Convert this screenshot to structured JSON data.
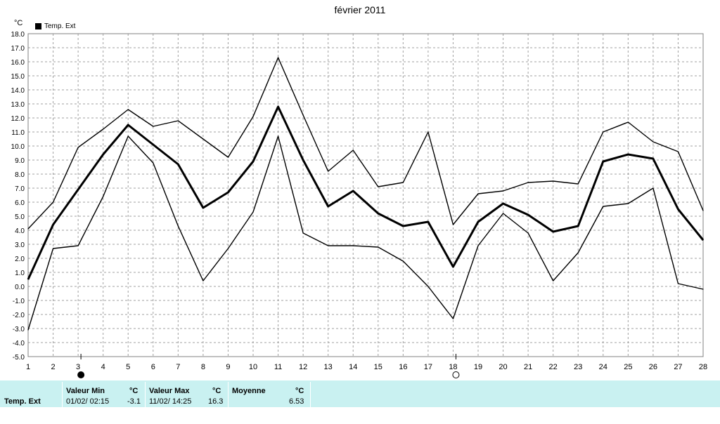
{
  "chart_data": {
    "type": "line",
    "title": "février 2011",
    "ylabel": "°C",
    "ylim": [
      -5.0,
      18.0
    ],
    "yticks": [
      "-5.0",
      "-4.0",
      "-3.0",
      "-2.0",
      "-1.0",
      "0.0",
      "1.0",
      "2.0",
      "3.0",
      "4.0",
      "5.0",
      "6.0",
      "7.0",
      "8.0",
      "9.0",
      "10.0",
      "11.0",
      "12.0",
      "13.0",
      "14.0",
      "15.0",
      "16.0",
      "17.0",
      "18.0"
    ],
    "x": [
      1,
      2,
      3,
      4,
      5,
      6,
      7,
      8,
      9,
      10,
      11,
      12,
      13,
      14,
      15,
      16,
      17,
      18,
      19,
      20,
      21,
      22,
      23,
      24,
      25,
      26,
      27,
      28
    ],
    "legend": "Temp. Ext",
    "series": [
      {
        "name": "Temp. Ext",
        "role": "max",
        "values": [
          4.1,
          6.0,
          9.9,
          11.2,
          12.6,
          11.4,
          11.8,
          10.5,
          9.2,
          12.1,
          16.3,
          12.2,
          8.2,
          9.7,
          7.1,
          7.4,
          11.0,
          4.4,
          6.6,
          6.8,
          7.4,
          7.5,
          7.3,
          11.0,
          11.7,
          10.3,
          9.6,
          5.4
        ]
      },
      {
        "name": "Temp. Ext",
        "role": "mean",
        "values": [
          0.5,
          4.4,
          6.9,
          9.4,
          11.5,
          10.1,
          8.7,
          5.6,
          6.7,
          8.9,
          12.8,
          9.0,
          5.7,
          6.8,
          5.2,
          4.3,
          4.6,
          1.4,
          4.6,
          5.9,
          5.1,
          3.9,
          4.3,
          8.9,
          9.4,
          9.1,
          5.5,
          3.3
        ]
      },
      {
        "name": "Temp. Ext",
        "role": "min",
        "values": [
          -3.1,
          2.7,
          2.9,
          6.4,
          10.7,
          8.8,
          4.3,
          0.4,
          2.7,
          5.3,
          10.7,
          3.8,
          2.9,
          2.9,
          2.8,
          1.8,
          0.0,
          -2.3,
          2.9,
          5.2,
          3.8,
          0.4,
          2.4,
          5.7,
          5.9,
          7.0,
          0.2,
          -0.2
        ]
      }
    ],
    "moon_markers": [
      {
        "x": 3,
        "phase": "new-moon"
      },
      {
        "x": 18,
        "phase": "full-moon"
      }
    ],
    "grid": true
  },
  "footer": {
    "row_label": "Temp. Ext",
    "min_header": "Valeur Min",
    "min_unit": "°C",
    "min_time": "01/02/  02:15",
    "min_value": "-3.1",
    "max_header": "Valeur Max",
    "max_unit": "°C",
    "max_time": "11/02/  14:25",
    "max_value": "16.3",
    "avg_header": "Moyenne",
    "avg_unit": "°C",
    "avg_value": "6.53"
  }
}
